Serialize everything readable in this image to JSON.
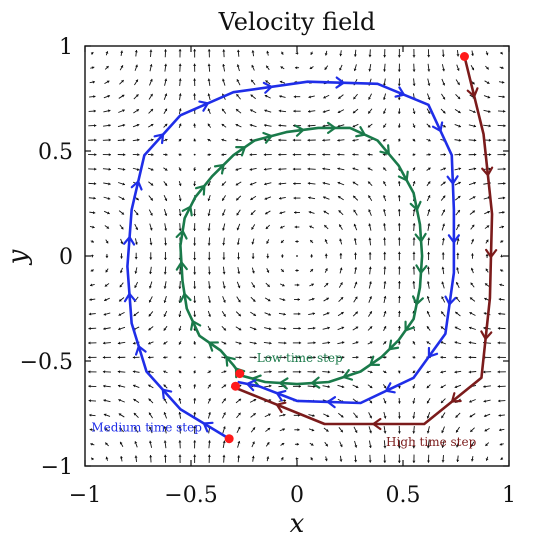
{
  "chart_data": {
    "type": "quiver",
    "title": "Velocity field",
    "xlabel": "x",
    "ylabel": "y",
    "xlim": [
      -1,
      1
    ],
    "ylim": [
      -1,
      1
    ],
    "x_ticks": [
      -1,
      -0.5,
      0,
      0.5,
      1
    ],
    "x_tick_labels": [
      "−1",
      "−0.5",
      "0",
      "0.5",
      "1"
    ],
    "y_ticks": [
      -1,
      -0.5,
      0,
      0.5,
      1
    ],
    "y_tick_labels": [
      "−1",
      "−0.5",
      "0",
      "0.5",
      "1"
    ],
    "grid": false,
    "field": {
      "description_free": true,
      "grid_n": 29,
      "rotation": "counter-clockwise",
      "color": "#111111"
    },
    "series": [
      {
        "name": "Low time step",
        "color": "#1a7a4a",
        "label_anchor": [
          -0.19,
          -0.505
        ],
        "start": [
          -0.27,
          -0.56
        ],
        "points": [
          [
            -0.27,
            -0.56
          ],
          [
            -0.3,
            -0.52
          ],
          [
            -0.36,
            -0.45
          ],
          [
            -0.46,
            -0.38
          ],
          [
            -0.52,
            -0.25
          ],
          [
            -0.54,
            -0.12
          ],
          [
            -0.55,
            0.05
          ],
          [
            -0.53,
            0.18
          ],
          [
            -0.48,
            0.28
          ],
          [
            -0.4,
            0.38
          ],
          [
            -0.3,
            0.48
          ],
          [
            -0.2,
            0.55
          ],
          [
            -0.05,
            0.59
          ],
          [
            0.1,
            0.61
          ],
          [
            0.25,
            0.61
          ],
          [
            0.38,
            0.55
          ],
          [
            0.48,
            0.43
          ],
          [
            0.55,
            0.3
          ],
          [
            0.58,
            0.15
          ],
          [
            0.59,
            0.0
          ],
          [
            0.58,
            -0.15
          ],
          [
            0.55,
            -0.3
          ],
          [
            0.48,
            -0.4
          ],
          [
            0.4,
            -0.48
          ],
          [
            0.3,
            -0.55
          ],
          [
            0.15,
            -0.6
          ],
          [
            0.0,
            -0.61
          ],
          [
            -0.15,
            -0.6
          ],
          [
            -0.26,
            -0.57
          ]
        ]
      },
      {
        "name": "Medium time step",
        "color": "#1f2ee8",
        "label_anchor": [
          -0.97,
          -0.835
        ],
        "start": [
          -0.32,
          -0.87
        ],
        "points": [
          [
            -0.32,
            -0.87
          ],
          [
            -0.55,
            -0.73
          ],
          [
            -0.71,
            -0.55
          ],
          [
            -0.78,
            -0.32
          ],
          [
            -0.8,
            -0.05
          ],
          [
            -0.78,
            0.22
          ],
          [
            -0.72,
            0.48
          ],
          [
            -0.55,
            0.67
          ],
          [
            -0.3,
            0.78
          ],
          [
            0.05,
            0.83
          ],
          [
            0.38,
            0.82
          ],
          [
            0.62,
            0.72
          ],
          [
            0.73,
            0.48
          ],
          [
            0.74,
            0.22
          ],
          [
            0.74,
            -0.08
          ],
          [
            0.7,
            -0.37
          ],
          [
            0.55,
            -0.58
          ],
          [
            0.3,
            -0.7
          ],
          [
            0.0,
            -0.69
          ],
          [
            -0.18,
            -0.62
          ],
          [
            -0.28,
            -0.6
          ]
        ]
      },
      {
        "name": "High time step",
        "color": "#7b1b1b",
        "label_anchor": [
          0.42,
          -0.905
        ],
        "start": [
          0.79,
          0.95
        ],
        "points": [
          [
            0.79,
            0.95
          ],
          [
            0.88,
            0.58
          ],
          [
            0.92,
            0.2
          ],
          [
            0.91,
            -0.2
          ],
          [
            0.87,
            -0.58
          ],
          [
            0.6,
            -0.8
          ],
          [
            0.13,
            -0.8
          ],
          [
            -0.31,
            -0.62
          ]
        ]
      }
    ],
    "markers": {
      "color": "#ff1a1a",
      "points": [
        [
          0.79,
          0.95
        ],
        [
          -0.32,
          -0.87
        ],
        [
          -0.29,
          -0.62
        ],
        [
          -0.27,
          -0.56
        ]
      ]
    }
  }
}
